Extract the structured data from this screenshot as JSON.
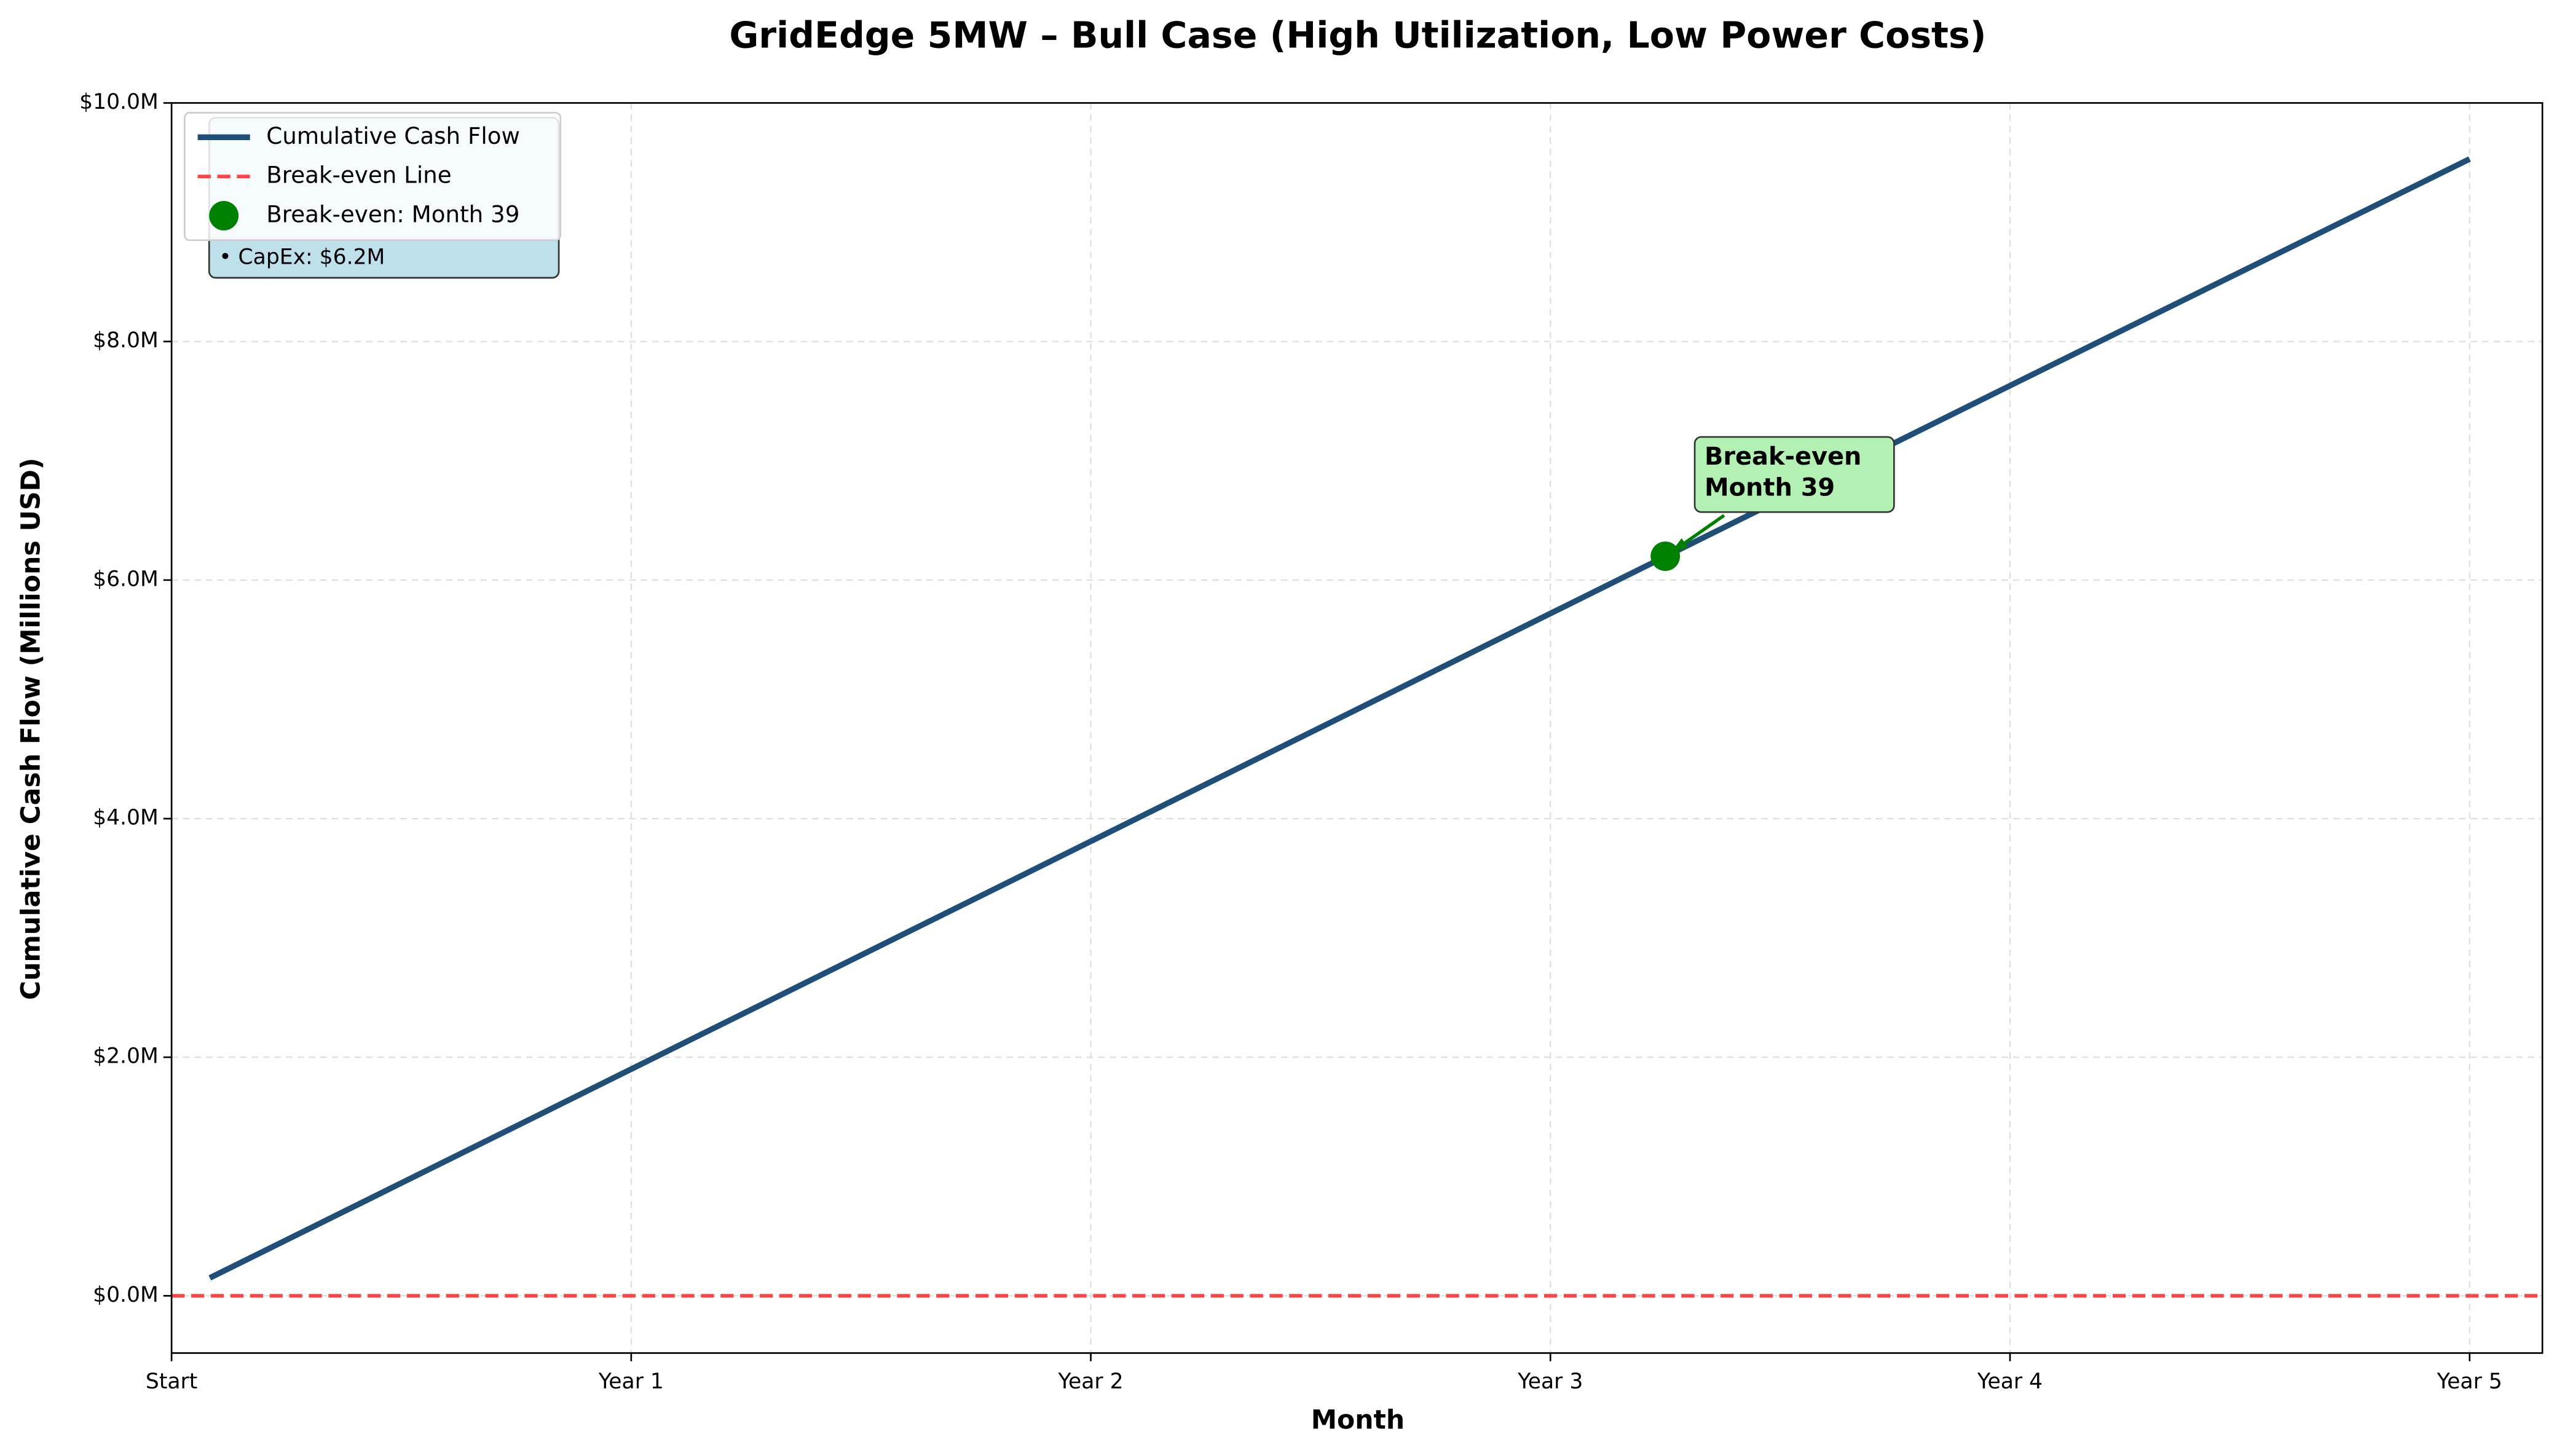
{
  "chart_data": {
    "type": "line",
    "title": "GridEdge 5MW – Bull Case (High Utilization, Low Power Costs)",
    "xlabel": "Month",
    "ylabel": "Cumulative Cash Flow (Millions USD)",
    "x": [
      1,
      12,
      24,
      36,
      48,
      60
    ],
    "series": [
      {
        "name": "Cumulative Cash Flow",
        "color": "#1f4e79",
        "values": [
          0.15,
          1.9,
          3.81,
          5.72,
          7.63,
          9.53
        ]
      }
    ],
    "reference_line": {
      "name": "Break-even Line",
      "value": 0,
      "color": "#ff4444"
    },
    "marker": {
      "name": "Break-even: Month 39",
      "x": 39,
      "value": 6.2,
      "color": "#008000"
    },
    "annotation": {
      "lines": [
        "Break-even",
        "Month 39"
      ]
    },
    "info_box": [
      "• CapEx: $6.2M"
    ],
    "xlim": [
      0,
      61.9
    ],
    "ylim": [
      -0.48,
      10
    ],
    "xticks": [
      {
        "value": 0,
        "label": "Start"
      },
      {
        "value": 12,
        "label": "Year 1"
      },
      {
        "value": 24,
        "label": "Year 2"
      },
      {
        "value": 36,
        "label": "Year 3"
      },
      {
        "value": 48,
        "label": "Year 4"
      },
      {
        "value": 60,
        "label": "Year 5"
      }
    ],
    "yticks": [
      {
        "value": 0,
        "label": "$0.0M"
      },
      {
        "value": 2,
        "label": "$2.0M"
      },
      {
        "value": 4,
        "label": "$4.0M"
      },
      {
        "value": 6,
        "label": "$6.0M"
      },
      {
        "value": 8,
        "label": "$8.0M"
      },
      {
        "value": 10,
        "label": "$10.0M"
      }
    ],
    "grid": true,
    "legend": "upper left"
  }
}
